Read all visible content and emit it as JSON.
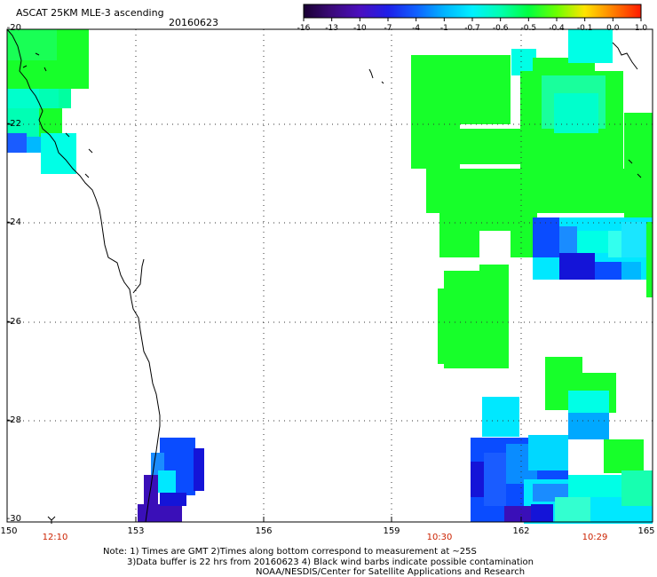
{
  "header": {
    "title": "ASCAT 25KM MLE-3 ascending",
    "date": "20160623"
  },
  "colorbar": {
    "labels": [
      "-16",
      "-13",
      "-10",
      "-7",
      "-4",
      "-1",
      "-0.7",
      "-0.6",
      "-0.5",
      "-0.4",
      "-0.1",
      "0.0",
      "1.0"
    ],
    "colors": [
      "#1a0033",
      "#3b0a7a",
      "#4b0fbf",
      "#1f1fe8",
      "#1060ff",
      "#00b4ff",
      "#00f0ff",
      "#00ffb0",
      "#00ff40",
      "#6cff00",
      "#ffe400",
      "#ff8000",
      "#ff1a00"
    ]
  },
  "axes": {
    "y_ticks": [
      "-20",
      "-22",
      "-24",
      "-26",
      "-28",
      "-30"
    ],
    "x_ticks": [
      "150",
      "153",
      "156",
      "159",
      "162",
      "165"
    ]
  },
  "times": [
    "12:10",
    "10:30",
    "10:29"
  ],
  "notes": {
    "line1": "Note: 1) Times are GMT 2)Times along bottom correspond to measurement at ~25S",
    "line2": "3)Data buffer is 22 hrs from 20160623 4) Black wind barbs indicate possible contamination",
    "line3": "NOAA/NESDIS/Center for Satellite Applications and Research"
  },
  "palette": {
    "green": "#17ff2a",
    "cyan": "#00ffe6",
    "aqua": "#00e8ff",
    "skyblue": "#00b8ff",
    "blue": "#0a4cff",
    "deepblue": "#1414d8",
    "violet": "#3a0fb8"
  }
}
